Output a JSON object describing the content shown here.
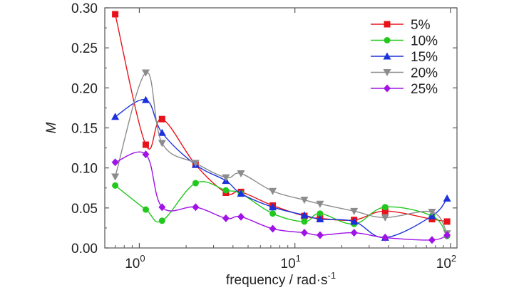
{
  "chart_data": {
    "type": "line",
    "xlabel": "frequency / rad·s",
    "xlabel_sup": "-1",
    "ylabel": "M",
    "xscale": "log",
    "xlim": [
      0.6,
      110
    ],
    "ylim": [
      0,
      0.3
    ],
    "x_ticks": [
      {
        "value": 1,
        "base": "10",
        "exp": "0"
      },
      {
        "value": 10,
        "base": "10",
        "exp": "1"
      },
      {
        "value": 100,
        "base": "10",
        "exp": "2"
      }
    ],
    "y_ticks": [
      "0.00",
      "0.05",
      "0.10",
      "0.15",
      "0.20",
      "0.25",
      "0.30"
    ],
    "y_tick_values": [
      0,
      0.05,
      0.1,
      0.15,
      0.2,
      0.25,
      0.3
    ],
    "grid": false,
    "legend_position": "top-right",
    "x": [
      0.7,
      1.1,
      1.4,
      2.3,
      3.6,
      4.5,
      7.2,
      11.5,
      14.5,
      24,
      38,
      76,
      95
    ],
    "series": [
      {
        "name": "5%",
        "color": "#e8121a",
        "marker": "square",
        "values": [
          0.292,
          0.129,
          0.161,
          0.104,
          0.069,
          0.07,
          0.053,
          0.04,
          0.037,
          0.035,
          0.046,
          0.036,
          0.033
        ]
      },
      {
        "name": "10%",
        "color": "#22c81e",
        "marker": "circle",
        "values": [
          0.078,
          0.048,
          0.034,
          0.081,
          0.072,
          0.068,
          0.043,
          0.033,
          0.043,
          0.03,
          0.051,
          0.04,
          0.015
        ]
      },
      {
        "name": "15%",
        "color": "#1a32dc",
        "marker": "triangle-up",
        "values": [
          0.164,
          0.185,
          0.144,
          0.104,
          0.084,
          0.068,
          0.051,
          0.041,
          0.036,
          0.033,
          0.013,
          0.04,
          0.062
        ]
      },
      {
        "name": "20%",
        "color": "#8c8c8c",
        "marker": "triangle-down",
        "values": [
          0.089,
          0.219,
          0.131,
          0.106,
          0.088,
          0.093,
          0.071,
          0.06,
          0.055,
          0.046,
          0.038,
          0.045,
          0.018
        ]
      },
      {
        "name": "25%",
        "color": "#a012e6",
        "marker": "diamond",
        "values": [
          0.107,
          0.117,
          0.051,
          0.051,
          0.037,
          0.039,
          0.024,
          0.019,
          0.016,
          0.019,
          0.013,
          0.01,
          0.016
        ]
      }
    ]
  }
}
